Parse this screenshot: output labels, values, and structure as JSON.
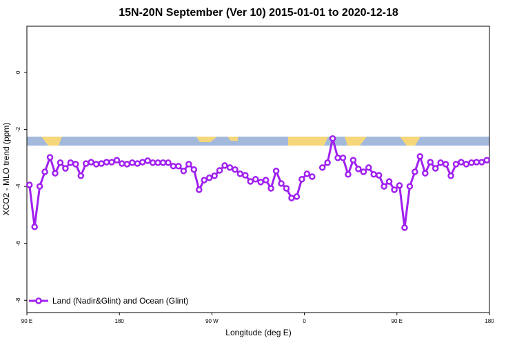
{
  "chart_data": {
    "type": "line",
    "title": "15N-20N September (Ver 10)   2015-01-01 to 2020-12-18",
    "xlabel": "Longitude (deg E)",
    "ylabel": "XCO2 - MLO trend (ppm)",
    "xlim": [
      90,
      540
    ],
    "xticks": [
      {
        "value": 90,
        "label": "90 E"
      },
      180,
      {
        "value": 270,
        "label": "90 W"
      },
      {
        "value": 360,
        "label": "0"
      },
      {
        "value": 450,
        "label": "90 E"
      },
      {
        "value": 540,
        "label": "180"
      }
    ],
    "ylim": [
      -8.43,
      1.62
    ],
    "yticks": [
      0,
      -2,
      -4,
      -6,
      -8
    ],
    "legend": "bottom-left",
    "x": [
      92.5,
      97.5,
      102.5,
      107.5,
      112.5,
      117.5,
      122.5,
      127.5,
      132.5,
      137.5,
      142.5,
      147.5,
      152.5,
      157.5,
      162.5,
      167.5,
      172.5,
      177.5,
      182.5,
      187.5,
      192.5,
      197.5,
      202.5,
      207.5,
      212.5,
      217.5,
      222.5,
      227.5,
      232.5,
      237.5,
      242.5,
      247.5,
      252.5,
      257.5,
      262.5,
      267.5,
      272.5,
      277.5,
      282.5,
      287.5,
      292.5,
      297.5,
      302.5,
      307.5,
      312.5,
      317.5,
      322.5,
      327.5,
      332.5,
      337.5,
      342.5,
      347.5,
      352.5,
      357.5,
      362.5,
      367.5,
      372.5,
      377.5,
      382.5,
      387.5,
      392.5,
      397.5,
      402.5,
      407.5,
      412.5,
      417.5,
      422.5,
      427.5,
      432.5,
      437.5,
      442.5,
      447.5,
      452.5,
      457.5,
      462.5,
      467.5,
      472.5,
      477.5,
      482.5,
      487.5,
      492.5,
      497.5,
      502.5,
      507.5,
      512.5,
      517.5,
      522.5,
      527.5,
      532.5,
      537.5
    ],
    "series": [
      {
        "name": "Land (Nadir&Glint) and Ocean (Glint)",
        "color": "#a020f0",
        "values": [
          -3.95,
          -5.42,
          -4.0,
          -3.49,
          -2.98,
          -3.54,
          -3.17,
          -3.37,
          -3.17,
          -3.22,
          -3.63,
          -3.2,
          -3.15,
          -3.22,
          -3.2,
          -3.15,
          -3.15,
          -3.08,
          -3.2,
          -3.22,
          -3.17,
          -3.2,
          -3.15,
          -3.1,
          -3.17,
          -3.17,
          -3.17,
          -3.17,
          -3.29,
          -3.29,
          -3.46,
          -3.22,
          -3.41,
          -4.12,
          -3.78,
          -3.7,
          -3.63,
          -3.44,
          -3.27,
          -3.34,
          -3.41,
          -3.56,
          -3.61,
          -3.83,
          -3.75,
          -3.85,
          -3.78,
          -4.07,
          -3.46,
          -3.9,
          -4.07,
          -4.41,
          -4.36,
          -3.75,
          -3.56,
          -3.66,
          null,
          -3.34,
          -3.17,
          -2.32,
          -3.0,
          -3.0,
          -3.58,
          -3.08,
          -3.39,
          -3.49,
          -3.34,
          -3.58,
          -3.61,
          -4.0,
          -3.83,
          -4.12,
          -3.97,
          -5.45,
          -4.0,
          -3.49,
          -2.95,
          -3.54,
          -3.15,
          -3.37,
          -3.17,
          -3.22,
          -3.63,
          -3.22,
          -3.15,
          -3.22,
          -3.17,
          -3.15,
          -3.15,
          -3.08
        ]
      }
    ]
  }
}
